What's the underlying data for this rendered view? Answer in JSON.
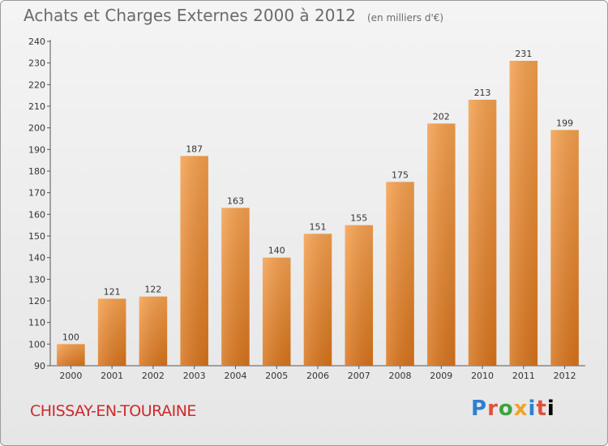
{
  "title": "Achats et Charges Externes 2000 à 2012",
  "unit": "(en milliers d'€)",
  "commune": "CHISSAY-EN-TOURAINE",
  "logo": [
    "P",
    "r",
    "o",
    "x",
    "i",
    "t",
    "i"
  ],
  "colors": {
    "bar_top": "#f5a04e",
    "bar_bottom": "#d8741c",
    "title": "#6b6b6b",
    "commune": "#cc2a2a"
  },
  "chart_data": {
    "type": "bar",
    "categories": [
      "2000",
      "2001",
      "2002",
      "2003",
      "2004",
      "2005",
      "2006",
      "2007",
      "2008",
      "2009",
      "2010",
      "2011",
      "2012"
    ],
    "values": [
      100,
      121,
      122,
      187,
      163,
      140,
      151,
      155,
      175,
      202,
      213,
      231,
      199
    ],
    "ylim": [
      90,
      240
    ],
    "yticks": [
      90,
      100,
      110,
      120,
      130,
      140,
      150,
      160,
      170,
      180,
      190,
      200,
      210,
      220,
      230,
      240
    ],
    "grid": false
  }
}
